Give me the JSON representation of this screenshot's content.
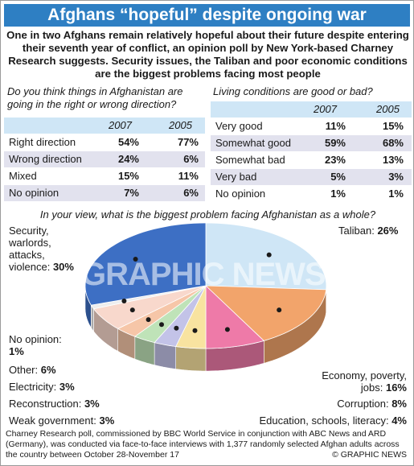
{
  "title": "Afghans “hopeful” despite ongoing war",
  "intro": "One in two Afghans remain relatively hopeful about their future despite entering their seventh year of conflict, an opinion poll by New York-based Charney Research suggests. Security issues, the Taliban and poor economic conditions are the biggest problems facing most people",
  "left_table": {
    "question": "Do you think things in Afghanistan are going in the right or wrong direction?",
    "col1": "2007",
    "col2": "2005",
    "rows": [
      {
        "label": "Right direction",
        "v2007": "54%",
        "v2005": "77%"
      },
      {
        "label": "Wrong direction",
        "v2007": "24%",
        "v2005": "6%"
      },
      {
        "label": "Mixed",
        "v2007": "15%",
        "v2005": "11%"
      },
      {
        "label": "No opinion",
        "v2007": "7%",
        "v2005": "6%"
      }
    ]
  },
  "right_table": {
    "question": "Living conditions are good or bad?",
    "col1": "2007",
    "col2": "2005",
    "rows": [
      {
        "label": "Very good",
        "v2007": "11%",
        "v2005": "15%"
      },
      {
        "label": "Somewhat good",
        "v2007": "59%",
        "v2005": "68%"
      },
      {
        "label": "Somewhat bad",
        "v2007": "23%",
        "v2005": "13%"
      },
      {
        "label": "Very bad",
        "v2007": "5%",
        "v2005": "3%"
      },
      {
        "label": "No opinion",
        "v2007": "1%",
        "v2005": "1%"
      }
    ]
  },
  "chart_data": {
    "type": "pie",
    "title": "In your view, what is the biggest problem facing Afghanistan as a whole?",
    "slices": [
      {
        "label": "Taliban",
        "value": 26,
        "display": "26%",
        "color": "#cfe6f6"
      },
      {
        "label": "Economy, poverty, jobs",
        "value": 16,
        "display": "16%",
        "color": "#f2a46b"
      },
      {
        "label": "Corruption",
        "value": 8,
        "display": "8%",
        "color": "#ee7aa8"
      },
      {
        "label": "Education, schools, literacy",
        "value": 4,
        "display": "4%",
        "color": "#f8e3a0"
      },
      {
        "label": "Weak government",
        "value": 3,
        "display": "3%",
        "color": "#c3c3e8"
      },
      {
        "label": "Reconstruction",
        "value": 3,
        "display": "3%",
        "color": "#bfe3b8"
      },
      {
        "label": "Electricity",
        "value": 3,
        "display": "3%",
        "color": "#f6c6a8"
      },
      {
        "label": "Other",
        "value": 6,
        "display": "6%",
        "color": "#f8d8cc"
      },
      {
        "label": "No opinion",
        "value": 1,
        "display": "1%",
        "color": "#eeeeee"
      },
      {
        "label": "Security, warlords, attacks, violence",
        "value": 30,
        "display": "30%",
        "color": "#3d6fc4"
      }
    ]
  },
  "footer": "Charney Research poll, commissioned by BBC World Service in conjunction with ABC News and ARD (Germany), was conducted via face-to-face interviews with 1,377 randomly selected Afghan adults across the country between October 28-November 17",
  "credit": "© GRAPHIC NEWS",
  "watermark": "GRAPHIC NEWS"
}
